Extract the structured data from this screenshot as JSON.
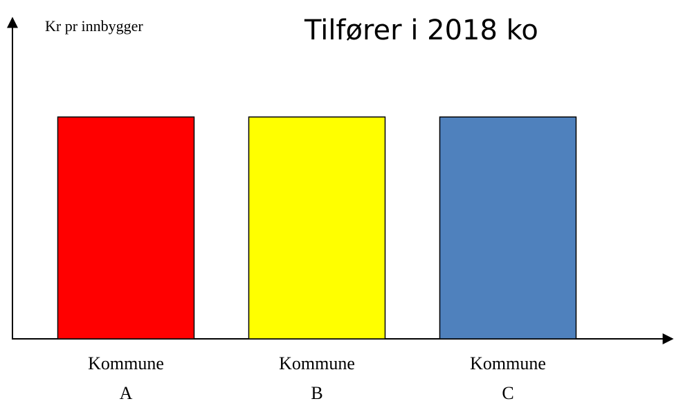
{
  "chart_data": {
    "type": "bar",
    "title": "Tilfører i 2018 ko",
    "y_label": "Kr pr innbygger",
    "categories": [
      "Kommune A",
      "Kommune B",
      "Kommune C"
    ],
    "series": [
      {
        "values": [
          1,
          1,
          1
        ],
        "colors": [
          "#ff0000",
          "#ffff00",
          "#4f81bd"
        ]
      }
    ],
    "ylim": [
      0,
      1.44
    ]
  }
}
